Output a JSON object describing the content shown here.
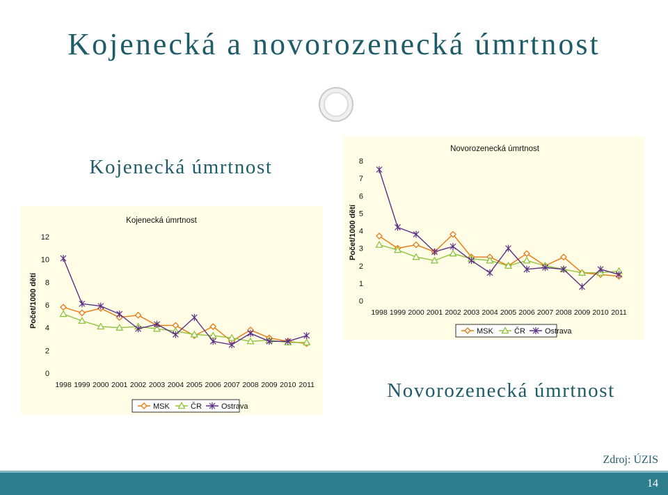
{
  "slide": {
    "title": "Kojenecká a novorozenecká úmrtnost",
    "subtitle_infant": "Kojenecká úmrtnost",
    "subtitle_neonatal": "Novorozenecká úmrtnost",
    "source": "Zdroj: ÚZIS",
    "page_number": "14"
  },
  "colors": {
    "title": "#1f5c6a",
    "footer": "#2d7e8c",
    "chart_bg": "#fffde6",
    "msk": "#e8780c",
    "cr": "#8fc43a",
    "ostrava": "#5c2f86"
  },
  "chart_data": [
    {
      "type": "line",
      "title": "Kojenecká úmrtnost",
      "ylabel": "Počet/1000 dětí",
      "xlabel": "",
      "ylim": [
        0,
        12
      ],
      "yticks": [
        "0",
        "2",
        "4",
        "6",
        "8",
        "10",
        "12"
      ],
      "categories": [
        "1998",
        "1999",
        "2000",
        "2001",
        "2002",
        "2003",
        "2004",
        "2005",
        "2006",
        "2007",
        "2008",
        "2009",
        "2010",
        "2011"
      ],
      "legend_position": "bottom",
      "grid": false,
      "series": [
        {
          "name": "MSK",
          "marker": "diamond",
          "values": [
            5.8,
            5.3,
            5.7,
            4.9,
            5.1,
            4.2,
            4.2,
            3.3,
            4.1,
            2.8,
            3.8,
            3.1,
            2.8,
            2.6
          ]
        },
        {
          "name": "ČR",
          "marker": "triangle",
          "values": [
            5.2,
            4.6,
            4.1,
            4.0,
            4.1,
            3.9,
            3.7,
            3.4,
            3.3,
            3.1,
            2.8,
            2.9,
            2.7,
            2.7
          ]
        },
        {
          "name": "Ostrava",
          "marker": "star",
          "values": [
            10.1,
            6.1,
            5.9,
            5.2,
            3.9,
            4.3,
            3.4,
            4.9,
            2.8,
            2.5,
            3.5,
            2.8,
            2.8,
            3.3
          ]
        }
      ]
    },
    {
      "type": "line",
      "title": "Novorozenecká úmrtnost",
      "ylabel": "Počet/1000 dětí",
      "xlabel": "",
      "ylim": [
        0,
        8
      ],
      "yticks": [
        "0",
        "1",
        "2",
        "3",
        "4",
        "5",
        "6",
        "7",
        "8"
      ],
      "categories": [
        "1998",
        "1999",
        "2000",
        "2001",
        "2002",
        "2003",
        "2004",
        "2005",
        "2006",
        "2007",
        "2008",
        "2009",
        "2010",
        "2011"
      ],
      "legend_position": "bottom",
      "grid": false,
      "series": [
        {
          "name": "MSK",
          "marker": "diamond",
          "values": [
            3.7,
            3.0,
            3.2,
            2.8,
            3.8,
            2.5,
            2.5,
            2.0,
            2.7,
            2.0,
            2.5,
            1.6,
            1.5,
            1.4
          ]
        },
        {
          "name": "ČR",
          "marker": "triangle",
          "values": [
            3.2,
            2.9,
            2.5,
            2.3,
            2.7,
            2.4,
            2.3,
            2.0,
            2.3,
            2.0,
            1.8,
            1.6,
            1.6,
            1.7
          ]
        },
        {
          "name": "Ostrava",
          "marker": "star",
          "values": [
            7.5,
            4.2,
            3.8,
            2.8,
            3.1,
            2.3,
            1.6,
            3.0,
            1.8,
            1.9,
            1.8,
            0.8,
            1.8,
            1.5
          ]
        }
      ]
    }
  ]
}
